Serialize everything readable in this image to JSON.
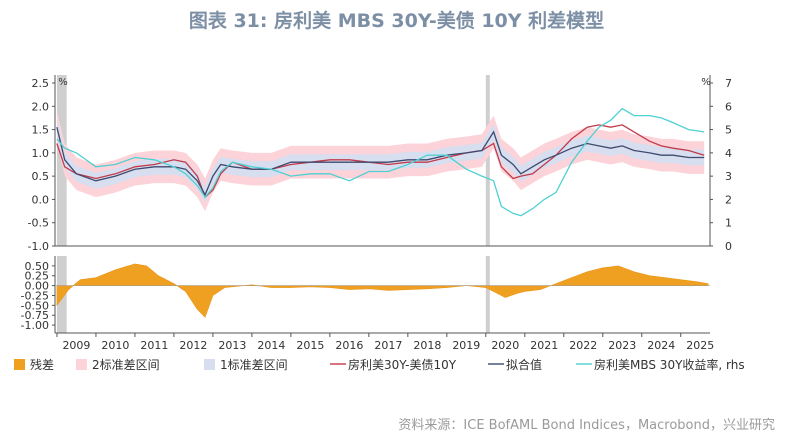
{
  "chart_data": {
    "title": "图表 31: 房利美 MBS 30Y-美债 10Y 利差模型",
    "source": "资料来源：ICE BofAML Bond Indices，Macrobond，兴业研究",
    "type": "line",
    "top_panel": {
      "ylim_left": [
        -1.0,
        2.5
      ],
      "yticks_left": [
        "2.5",
        "2.0",
        "1.5",
        "1.0",
        "0.5",
        "0.0",
        "-0.5",
        "-1.0"
      ],
      "unit_left": "%",
      "ylim_right": [
        0,
        7
      ],
      "yticks_right": [
        "7",
        "6",
        "5",
        "4",
        "3",
        "2",
        "1",
        "0"
      ],
      "unit_right": "%",
      "series": [
        {
          "name": "房利美30Y-美债10Y",
          "color": "#c23a4a",
          "axis": "left",
          "points": [
            [
              2009.0,
              1.2
            ],
            [
              2009.2,
              0.7
            ],
            [
              2009.5,
              0.55
            ],
            [
              2010.0,
              0.45
            ],
            [
              2010.5,
              0.55
            ],
            [
              2011.0,
              0.7
            ],
            [
              2011.5,
              0.75
            ],
            [
              2012.0,
              0.85
            ],
            [
              2012.3,
              0.8
            ],
            [
              2012.6,
              0.5
            ],
            [
              2012.8,
              0.05
            ],
            [
              2013.0,
              0.2
            ],
            [
              2013.2,
              0.55
            ],
            [
              2013.5,
              0.8
            ],
            [
              2014.0,
              0.65
            ],
            [
              2014.5,
              0.65
            ],
            [
              2015.0,
              0.75
            ],
            [
              2015.5,
              0.8
            ],
            [
              2016.0,
              0.85
            ],
            [
              2016.5,
              0.85
            ],
            [
              2017.0,
              0.8
            ],
            [
              2017.5,
              0.75
            ],
            [
              2018.0,
              0.8
            ],
            [
              2018.5,
              0.8
            ],
            [
              2019.0,
              0.9
            ],
            [
              2019.5,
              1.0
            ],
            [
              2019.9,
              1.05
            ],
            [
              2020.2,
              1.2
            ],
            [
              2020.4,
              0.7
            ],
            [
              2020.7,
              0.45
            ],
            [
              2020.9,
              0.5
            ],
            [
              2021.2,
              0.55
            ],
            [
              2021.5,
              0.75
            ],
            [
              2021.8,
              0.95
            ],
            [
              2022.2,
              1.3
            ],
            [
              2022.6,
              1.55
            ],
            [
              2022.9,
              1.6
            ],
            [
              2023.2,
              1.55
            ],
            [
              2023.5,
              1.6
            ],
            [
              2023.8,
              1.45
            ],
            [
              2024.2,
              1.25
            ],
            [
              2024.5,
              1.15
            ],
            [
              2024.8,
              1.1
            ],
            [
              2025.2,
              1.05
            ],
            [
              2025.6,
              0.95
            ]
          ]
        },
        {
          "name": "拟合值",
          "color": "#3e4a6e",
          "axis": "left",
          "points": [
            [
              2009.0,
              1.55
            ],
            [
              2009.2,
              0.85
            ],
            [
              2009.5,
              0.55
            ],
            [
              2010.0,
              0.4
            ],
            [
              2010.5,
              0.5
            ],
            [
              2011.0,
              0.65
            ],
            [
              2011.5,
              0.7
            ],
            [
              2012.0,
              0.7
            ],
            [
              2012.3,
              0.65
            ],
            [
              2012.6,
              0.4
            ],
            [
              2012.8,
              0.1
            ],
            [
              2013.0,
              0.5
            ],
            [
              2013.2,
              0.75
            ],
            [
              2013.5,
              0.7
            ],
            [
              2014.0,
              0.65
            ],
            [
              2014.5,
              0.65
            ],
            [
              2015.0,
              0.8
            ],
            [
              2015.5,
              0.8
            ],
            [
              2016.0,
              0.8
            ],
            [
              2016.5,
              0.8
            ],
            [
              2017.0,
              0.8
            ],
            [
              2017.5,
              0.8
            ],
            [
              2018.0,
              0.85
            ],
            [
              2018.5,
              0.85
            ],
            [
              2019.0,
              0.95
            ],
            [
              2019.5,
              1.0
            ],
            [
              2019.9,
              1.05
            ],
            [
              2020.2,
              1.45
            ],
            [
              2020.4,
              0.95
            ],
            [
              2020.7,
              0.75
            ],
            [
              2020.9,
              0.55
            ],
            [
              2021.2,
              0.7
            ],
            [
              2021.5,
              0.85
            ],
            [
              2021.8,
              0.95
            ],
            [
              2022.2,
              1.1
            ],
            [
              2022.6,
              1.2
            ],
            [
              2022.9,
              1.15
            ],
            [
              2023.2,
              1.1
            ],
            [
              2023.5,
              1.15
            ],
            [
              2023.8,
              1.05
            ],
            [
              2024.2,
              1.0
            ],
            [
              2024.5,
              0.95
            ],
            [
              2024.8,
              0.95
            ],
            [
              2025.2,
              0.9
            ],
            [
              2025.6,
              0.9
            ]
          ]
        },
        {
          "name": "房利美MBS 30Y收益率, rhs",
          "color": "#4fd0d2",
          "axis": "right",
          "points": [
            [
              2009.0,
              4.6
            ],
            [
              2009.2,
              4.2
            ],
            [
              2009.5,
              4.0
            ],
            [
              2010.0,
              3.4
            ],
            [
              2010.5,
              3.5
            ],
            [
              2011.0,
              3.8
            ],
            [
              2011.5,
              3.7
            ],
            [
              2012.0,
              3.4
            ],
            [
              2012.3,
              3.1
            ],
            [
              2012.6,
              2.6
            ],
            [
              2012.8,
              2.1
            ],
            [
              2013.0,
              2.5
            ],
            [
              2013.2,
              3.2
            ],
            [
              2013.5,
              3.6
            ],
            [
              2014.0,
              3.4
            ],
            [
              2014.5,
              3.3
            ],
            [
              2015.0,
              3.0
            ],
            [
              2015.5,
              3.1
            ],
            [
              2016.0,
              3.1
            ],
            [
              2016.5,
              2.8
            ],
            [
              2017.0,
              3.2
            ],
            [
              2017.5,
              3.2
            ],
            [
              2018.0,
              3.5
            ],
            [
              2018.5,
              3.9
            ],
            [
              2019.0,
              3.9
            ],
            [
              2019.5,
              3.3
            ],
            [
              2019.9,
              3.0
            ],
            [
              2020.2,
              2.8
            ],
            [
              2020.4,
              1.7
            ],
            [
              2020.7,
              1.4
            ],
            [
              2020.9,
              1.3
            ],
            [
              2021.2,
              1.6
            ],
            [
              2021.5,
              2.0
            ],
            [
              2021.8,
              2.3
            ],
            [
              2022.2,
              3.6
            ],
            [
              2022.6,
              4.5
            ],
            [
              2022.9,
              5.1
            ],
            [
              2023.2,
              5.4
            ],
            [
              2023.5,
              5.9
            ],
            [
              2023.8,
              5.6
            ],
            [
              2024.2,
              5.6
            ],
            [
              2024.5,
              5.5
            ],
            [
              2024.8,
              5.3
            ],
            [
              2025.2,
              5.0
            ],
            [
              2025.6,
              4.9
            ]
          ]
        }
      ],
      "band_2sd_halfwidth": 0.35,
      "band_1sd_halfwidth": 0.17
    },
    "bottom_panel": {
      "ylim": [
        -1.2,
        0.75
      ],
      "yticks": [
        "0.50",
        "0.25",
        "0.00",
        "-0.25",
        "-0.50",
        "-0.75",
        "-1.00"
      ],
      "residual": [
        [
          2009.0,
          -0.5
        ],
        [
          2009.3,
          -0.1
        ],
        [
          2009.6,
          0.15
        ],
        [
          2010.0,
          0.2
        ],
        [
          2010.5,
          0.4
        ],
        [
          2011.0,
          0.55
        ],
        [
          2011.3,
          0.5
        ],
        [
          2011.6,
          0.25
        ],
        [
          2012.0,
          0.05
        ],
        [
          2012.3,
          -0.15
        ],
        [
          2012.6,
          -0.6
        ],
        [
          2012.8,
          -0.8
        ],
        [
          2013.0,
          -0.25
        ],
        [
          2013.3,
          -0.05
        ],
        [
          2014.0,
          0.02
        ],
        [
          2014.5,
          -0.05
        ],
        [
          2015.0,
          -0.05
        ],
        [
          2015.5,
          -0.03
        ],
        [
          2016.0,
          -0.05
        ],
        [
          2016.5,
          -0.1
        ],
        [
          2017.0,
          -0.08
        ],
        [
          2017.5,
          -0.12
        ],
        [
          2018.0,
          -0.1
        ],
        [
          2018.5,
          -0.08
        ],
        [
          2019.0,
          -0.05
        ],
        [
          2019.5,
          0.0
        ],
        [
          2020.0,
          -0.05
        ],
        [
          2020.3,
          -0.2
        ],
        [
          2020.5,
          -0.3
        ],
        [
          2020.8,
          -0.2
        ],
        [
          2021.0,
          -0.15
        ],
        [
          2021.4,
          -0.1
        ],
        [
          2021.8,
          0.05
        ],
        [
          2022.2,
          0.2
        ],
        [
          2022.6,
          0.35
        ],
        [
          2023.0,
          0.45
        ],
        [
          2023.4,
          0.5
        ],
        [
          2023.8,
          0.35
        ],
        [
          2024.2,
          0.25
        ],
        [
          2024.6,
          0.2
        ],
        [
          2025.0,
          0.15
        ],
        [
          2025.4,
          0.1
        ],
        [
          2025.7,
          0.05
        ]
      ]
    },
    "shaded_periods": [
      [
        2009.0,
        2009.25
      ],
      [
        2020.0,
        2020.1
      ]
    ],
    "xlim": [
      2008.95,
      2025.75
    ],
    "xticks": [
      "2009",
      "2010",
      "2011",
      "2012",
      "2013",
      "2014",
      "2015",
      "2016",
      "2017",
      "2018",
      "2019",
      "2020",
      "2021",
      "2022",
      "2023",
      "2024",
      "2025"
    ],
    "legend": [
      {
        "label": "残差",
        "color": "#f0a020",
        "kind": "box"
      },
      {
        "label": "2标准差区间",
        "color": "#fbd3d8",
        "kind": "box"
      },
      {
        "label": "1标准差区间",
        "color": "#d7deef",
        "kind": "box"
      },
      {
        "label": "房利美30Y-美债10Y",
        "color": "#c23a4a",
        "kind": "line"
      },
      {
        "label": "拟合值",
        "color": "#3e4a6e",
        "kind": "line"
      },
      {
        "label": "房利美MBS 30Y收益率, rhs",
        "color": "#4fd0d2",
        "kind": "line"
      }
    ]
  }
}
